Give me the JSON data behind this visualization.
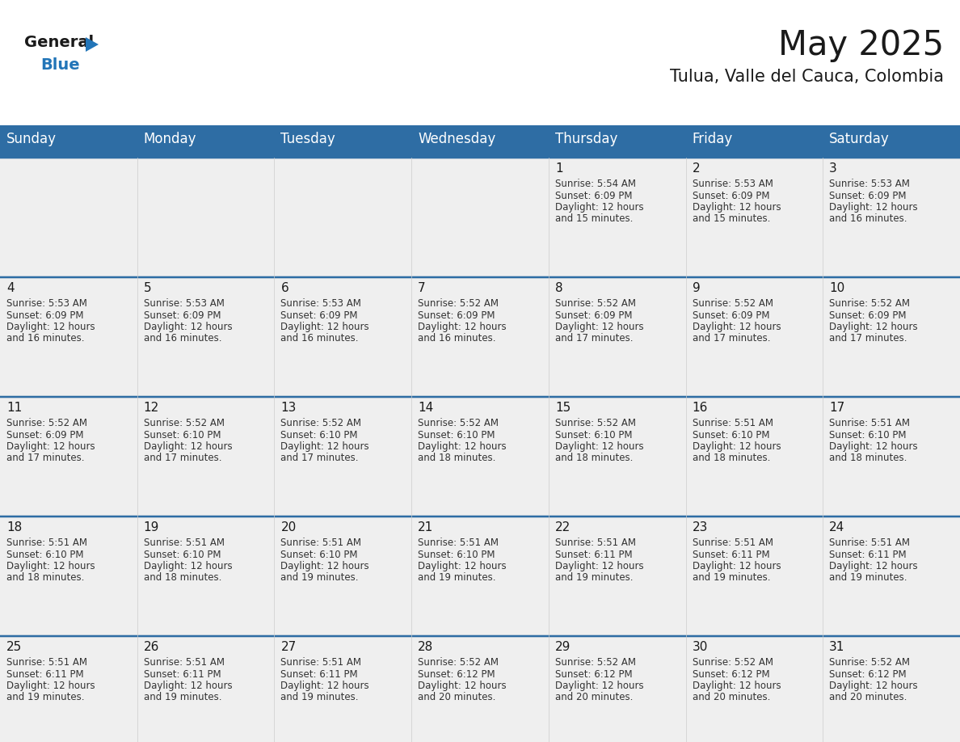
{
  "title": "May 2025",
  "subtitle": "Tulua, Valle del Cauca, Colombia",
  "days_of_week": [
    "Sunday",
    "Monday",
    "Tuesday",
    "Wednesday",
    "Thursday",
    "Friday",
    "Saturday"
  ],
  "header_bg": "#2E6DA4",
  "header_text": "#FFFFFF",
  "cell_bg": "#EFEFEF",
  "cell_border": "#2E6DA4",
  "day_number_color": "#1a1a1a",
  "cell_text_color": "#333333",
  "logo_general_color": "#1a1a1a",
  "logo_blue_color": "#2275B8",
  "title_fontsize": 30,
  "subtitle_fontsize": 15,
  "header_fontsize": 12,
  "day_num_fontsize": 11,
  "cell_text_fontsize": 8.5,
  "calendar": [
    [
      {
        "day": 0,
        "sunrise": "",
        "sunset": "",
        "daylight": ""
      },
      {
        "day": 0,
        "sunrise": "",
        "sunset": "",
        "daylight": ""
      },
      {
        "day": 0,
        "sunrise": "",
        "sunset": "",
        "daylight": ""
      },
      {
        "day": 0,
        "sunrise": "",
        "sunset": "",
        "daylight": ""
      },
      {
        "day": 1,
        "sunrise": "5:54 AM",
        "sunset": "6:09 PM",
        "daylight": "12 hours and 15 minutes."
      },
      {
        "day": 2,
        "sunrise": "5:53 AM",
        "sunset": "6:09 PM",
        "daylight": "12 hours and 15 minutes."
      },
      {
        "day": 3,
        "sunrise": "5:53 AM",
        "sunset": "6:09 PM",
        "daylight": "12 hours and 16 minutes."
      }
    ],
    [
      {
        "day": 4,
        "sunrise": "5:53 AM",
        "sunset": "6:09 PM",
        "daylight": "12 hours and 16 minutes."
      },
      {
        "day": 5,
        "sunrise": "5:53 AM",
        "sunset": "6:09 PM",
        "daylight": "12 hours and 16 minutes."
      },
      {
        "day": 6,
        "sunrise": "5:53 AM",
        "sunset": "6:09 PM",
        "daylight": "12 hours and 16 minutes."
      },
      {
        "day": 7,
        "sunrise": "5:52 AM",
        "sunset": "6:09 PM",
        "daylight": "12 hours and 16 minutes."
      },
      {
        "day": 8,
        "sunrise": "5:52 AM",
        "sunset": "6:09 PM",
        "daylight": "12 hours and 17 minutes."
      },
      {
        "day": 9,
        "sunrise": "5:52 AM",
        "sunset": "6:09 PM",
        "daylight": "12 hours and 17 minutes."
      },
      {
        "day": 10,
        "sunrise": "5:52 AM",
        "sunset": "6:09 PM",
        "daylight": "12 hours and 17 minutes."
      }
    ],
    [
      {
        "day": 11,
        "sunrise": "5:52 AM",
        "sunset": "6:09 PM",
        "daylight": "12 hours and 17 minutes."
      },
      {
        "day": 12,
        "sunrise": "5:52 AM",
        "sunset": "6:10 PM",
        "daylight": "12 hours and 17 minutes."
      },
      {
        "day": 13,
        "sunrise": "5:52 AM",
        "sunset": "6:10 PM",
        "daylight": "12 hours and 17 minutes."
      },
      {
        "day": 14,
        "sunrise": "5:52 AM",
        "sunset": "6:10 PM",
        "daylight": "12 hours and 18 minutes."
      },
      {
        "day": 15,
        "sunrise": "5:52 AM",
        "sunset": "6:10 PM",
        "daylight": "12 hours and 18 minutes."
      },
      {
        "day": 16,
        "sunrise": "5:51 AM",
        "sunset": "6:10 PM",
        "daylight": "12 hours and 18 minutes."
      },
      {
        "day": 17,
        "sunrise": "5:51 AM",
        "sunset": "6:10 PM",
        "daylight": "12 hours and 18 minutes."
      }
    ],
    [
      {
        "day": 18,
        "sunrise": "5:51 AM",
        "sunset": "6:10 PM",
        "daylight": "12 hours and 18 minutes."
      },
      {
        "day": 19,
        "sunrise": "5:51 AM",
        "sunset": "6:10 PM",
        "daylight": "12 hours and 18 minutes."
      },
      {
        "day": 20,
        "sunrise": "5:51 AM",
        "sunset": "6:10 PM",
        "daylight": "12 hours and 19 minutes."
      },
      {
        "day": 21,
        "sunrise": "5:51 AM",
        "sunset": "6:10 PM",
        "daylight": "12 hours and 19 minutes."
      },
      {
        "day": 22,
        "sunrise": "5:51 AM",
        "sunset": "6:11 PM",
        "daylight": "12 hours and 19 minutes."
      },
      {
        "day": 23,
        "sunrise": "5:51 AM",
        "sunset": "6:11 PM",
        "daylight": "12 hours and 19 minutes."
      },
      {
        "day": 24,
        "sunrise": "5:51 AM",
        "sunset": "6:11 PM",
        "daylight": "12 hours and 19 minutes."
      }
    ],
    [
      {
        "day": 25,
        "sunrise": "5:51 AM",
        "sunset": "6:11 PM",
        "daylight": "12 hours and 19 minutes."
      },
      {
        "day": 26,
        "sunrise": "5:51 AM",
        "sunset": "6:11 PM",
        "daylight": "12 hours and 19 minutes."
      },
      {
        "day": 27,
        "sunrise": "5:51 AM",
        "sunset": "6:11 PM",
        "daylight": "12 hours and 19 minutes."
      },
      {
        "day": 28,
        "sunrise": "5:52 AM",
        "sunset": "6:12 PM",
        "daylight": "12 hours and 20 minutes."
      },
      {
        "day": 29,
        "sunrise": "5:52 AM",
        "sunset": "6:12 PM",
        "daylight": "12 hours and 20 minutes."
      },
      {
        "day": 30,
        "sunrise": "5:52 AM",
        "sunset": "6:12 PM",
        "daylight": "12 hours and 20 minutes."
      },
      {
        "day": 31,
        "sunrise": "5:52 AM",
        "sunset": "6:12 PM",
        "daylight": "12 hours and 20 minutes."
      }
    ]
  ]
}
